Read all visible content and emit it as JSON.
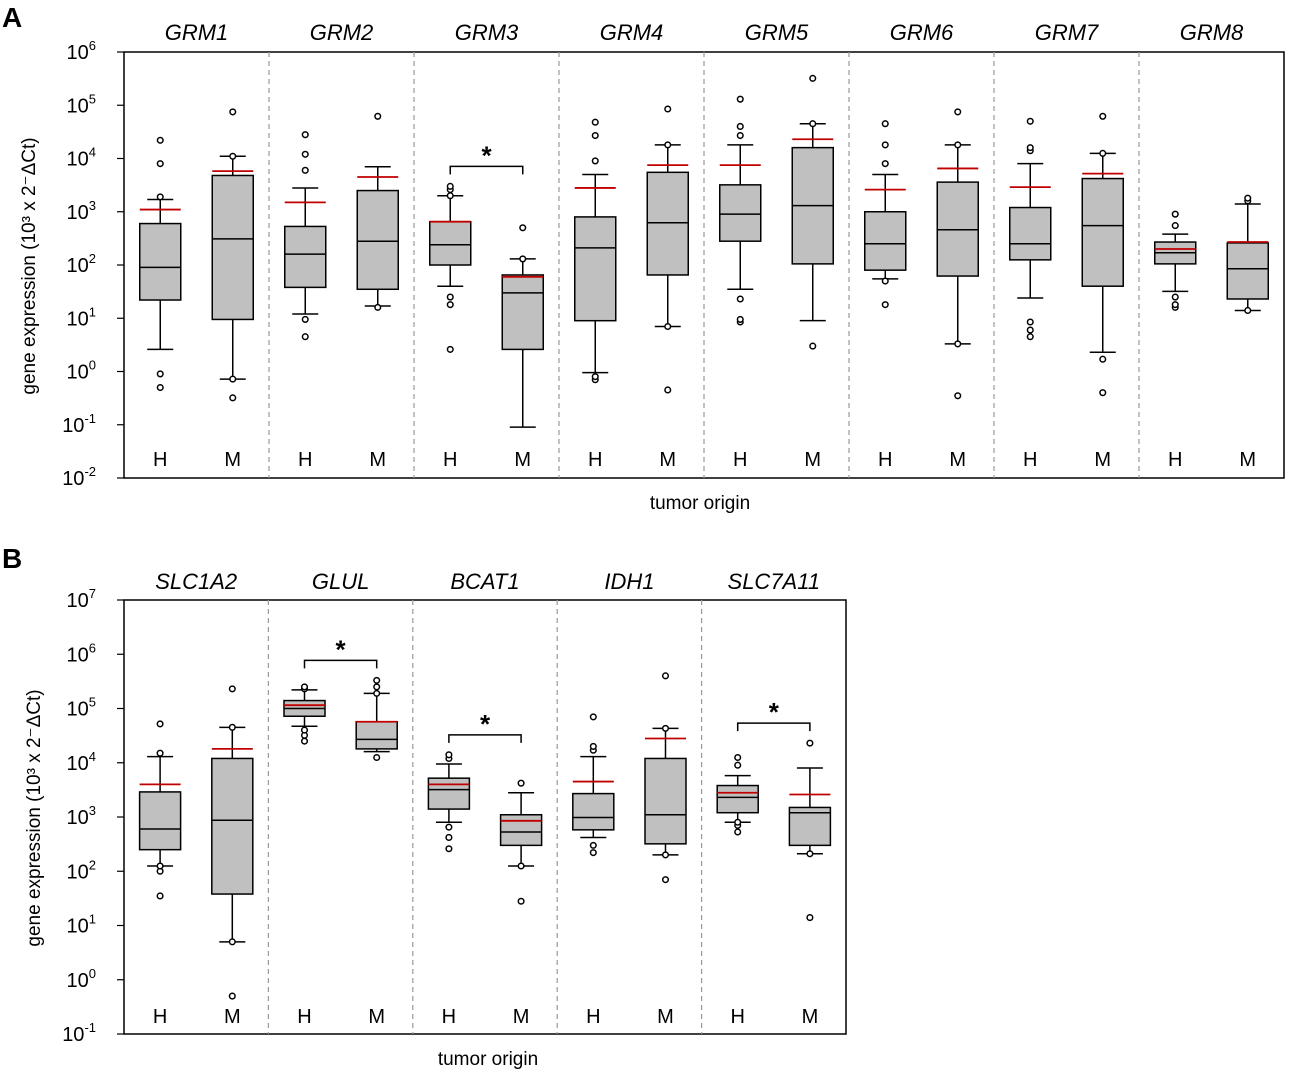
{
  "colors": {
    "box_fill": "#c0c0c0",
    "mean_line": "#c00000",
    "stroke": "#000000",
    "separator": "#999999"
  },
  "chart_data": [
    {
      "panel_label": "A",
      "type": "box",
      "xlabel": "tumor origin",
      "ylabel": "gene expression (10³ x 2⁻ΔCt)",
      "scale": "log10",
      "ylim_exp": [
        -2,
        6
      ],
      "ytick_exps": [
        "-2",
        "-1",
        "0",
        "1",
        "2",
        "3",
        "4",
        "5",
        "6"
      ],
      "group_labels": [
        "H",
        "M"
      ],
      "genes": [
        {
          "name": "GRM1",
          "boxes": [
            {
              "group": "H",
              "q1": 22,
              "median": 90,
              "q3": 600,
              "wlo": 2.6,
              "whi": 1700,
              "mean": 1100,
              "outliers": [
                0.5,
                0.9,
                1900,
                8000,
                22000
              ]
            },
            {
              "group": "M",
              "q1": 9.5,
              "median": 310,
              "q3": 4800,
              "wlo": 0.72,
              "whi": 11000,
              "mean": 5800,
              "outliers": [
                0.32,
                0.72,
                11000,
                75000
              ]
            }
          ]
        },
        {
          "name": "GRM2",
          "boxes": [
            {
              "group": "H",
              "q1": 38,
              "median": 160,
              "q3": 530,
              "wlo": 12,
              "whi": 2800,
              "mean": 1500,
              "outliers": [
                4.5,
                9.5,
                6000,
                12000,
                28000
              ]
            },
            {
              "group": "M",
              "q1": 35,
              "median": 280,
              "q3": 2500,
              "wlo": 17,
              "whi": 7000,
              "mean": 4500,
              "outliers": [
                16,
                62000
              ]
            }
          ]
        },
        {
          "name": "GRM3",
          "sig": "*",
          "boxes": [
            {
              "group": "H",
              "q1": 100,
              "median": 240,
              "q3": 650,
              "wlo": 40,
              "whi": 2000,
              "mean": 650,
              "outliers": [
                2.6,
                18,
                25,
                2000,
                2600,
                3000
              ]
            },
            {
              "group": "M",
              "q1": 2.6,
              "median": 30,
              "q3": 65,
              "wlo": 0.09,
              "whi": 130,
              "mean": 60,
              "outliers": [
                130,
                500
              ]
            }
          ]
        },
        {
          "name": "GRM4",
          "boxes": [
            {
              "group": "H",
              "q1": 9,
              "median": 210,
              "q3": 800,
              "wlo": 0.95,
              "whi": 5000,
              "mean": 2800,
              "outliers": [
                0.7,
                0.8,
                9000,
                27000,
                48000
              ]
            },
            {
              "group": "M",
              "q1": 65,
              "median": 620,
              "q3": 5500,
              "wlo": 7,
              "whi": 18000,
              "mean": 7500,
              "outliers": [
                0.45,
                7,
                18000,
                85000
              ]
            }
          ]
        },
        {
          "name": "GRM5",
          "boxes": [
            {
              "group": "H",
              "q1": 280,
              "median": 900,
              "q3": 3200,
              "wlo": 35,
              "whi": 18000,
              "mean": 7500,
              "outliers": [
                8.5,
                9.5,
                23,
                27000,
                40000,
                130000
              ]
            },
            {
              "group": "M",
              "q1": 105,
              "median": 1300,
              "q3": 16000,
              "wlo": 9,
              "whi": 45000,
              "mean": 23000,
              "outliers": [
                3,
                45000,
                320000
              ]
            }
          ]
        },
        {
          "name": "GRM6",
          "boxes": [
            {
              "group": "H",
              "q1": 80,
              "median": 250,
              "q3": 1000,
              "wlo": 55,
              "whi": 5000,
              "mean": 2600,
              "outliers": [
                18,
                50,
                8000,
                18000,
                45000
              ]
            },
            {
              "group": "M",
              "q1": 62,
              "median": 460,
              "q3": 3600,
              "wlo": 3.3,
              "whi": 18000,
              "mean": 6500,
              "outliers": [
                0.35,
                3.3,
                18000,
                75000
              ]
            }
          ]
        },
        {
          "name": "GRM7",
          "boxes": [
            {
              "group": "H",
              "q1": 125,
              "median": 250,
              "q3": 1200,
              "wlo": 24,
              "whi": 8000,
              "mean": 2900,
              "outliers": [
                4.5,
                6,
                8.5,
                14000,
                16000,
                50000
              ]
            },
            {
              "group": "M",
              "q1": 40,
              "median": 550,
              "q3": 4200,
              "wlo": 2.3,
              "whi": 12500,
              "mean": 5200,
              "outliers": [
                0.4,
                1.7,
                12500,
                62000
              ]
            }
          ]
        },
        {
          "name": "GRM8",
          "boxes": [
            {
              "group": "H",
              "q1": 105,
              "median": 170,
              "q3": 270,
              "wlo": 32,
              "whi": 380,
              "mean": 200,
              "outliers": [
                16,
                18,
                25,
                550,
                900
              ]
            },
            {
              "group": "M",
              "q1": 23,
              "median": 85,
              "q3": 260,
              "wlo": 14,
              "whi": 1400,
              "mean": 270,
              "outliers": [
                14,
                1600,
                1800
              ]
            }
          ]
        }
      ]
    },
    {
      "panel_label": "B",
      "type": "box",
      "xlabel": "tumor origin",
      "ylabel": "gene expression (10³ x 2⁻ΔCt)",
      "scale": "log10",
      "ylim_exp": [
        -1,
        7
      ],
      "ytick_exps": [
        "-1",
        "0",
        "1",
        "2",
        "3",
        "4",
        "5",
        "6",
        "7"
      ],
      "group_labels": [
        "H",
        "M"
      ],
      "genes": [
        {
          "name": "SLC1A2",
          "boxes": [
            {
              "group": "H",
              "q1": 250,
              "median": 600,
              "q3": 2900,
              "wlo": 125,
              "whi": 13000,
              "mean": 4000,
              "outliers": [
                35,
                100,
                125,
                15000,
                52000
              ]
            },
            {
              "group": "M",
              "q1": 38,
              "median": 870,
              "q3": 12000,
              "wlo": 5,
              "whi": 45000,
              "mean": 18000,
              "outliers": [
                0.5,
                5,
                45000,
                230000
              ]
            }
          ]
        },
        {
          "name": "GLUL",
          "sig": "*",
          "boxes": [
            {
              "group": "H",
              "q1": 72000,
              "median": 100000,
              "q3": 140000,
              "wlo": 47000,
              "whi": 220000,
              "mean": 115000,
              "outliers": [
                25000,
                32000,
                40000,
                230000,
                250000
              ]
            },
            {
              "group": "M",
              "q1": 18000,
              "median": 27000,
              "q3": 57000,
              "wlo": 16000,
              "whi": 190000,
              "mean": 57000,
              "outliers": [
                12500,
                190000,
                250000,
                330000
              ]
            }
          ]
        },
        {
          "name": "BCAT1",
          "sig": "*",
          "boxes": [
            {
              "group": "H",
              "q1": 1400,
              "median": 3200,
              "q3": 5200,
              "wlo": 800,
              "whi": 9500,
              "mean": 4000,
              "outliers": [
                260,
                420,
                650,
                12000,
                14000
              ]
            },
            {
              "group": "M",
              "q1": 300,
              "median": 530,
              "q3": 1100,
              "wlo": 125,
              "whi": 2800,
              "mean": 850,
              "outliers": [
                28,
                125,
                4200
              ]
            }
          ]
        },
        {
          "name": "IDH1",
          "boxes": [
            {
              "group": "H",
              "q1": 580,
              "median": 980,
              "q3": 2700,
              "wlo": 420,
              "whi": 13000,
              "mean": 4500,
              "outliers": [
                220,
                300,
                17000,
                20000,
                70000
              ]
            },
            {
              "group": "M",
              "q1": 320,
              "median": 1100,
              "q3": 12000,
              "wlo": 200,
              "whi": 43000,
              "mean": 28000,
              "outliers": [
                70,
                200,
                43000,
                400000
              ]
            }
          ]
        },
        {
          "name": "SLC7A11",
          "sig": "*",
          "boxes": [
            {
              "group": "H",
              "q1": 1200,
              "median": 2300,
              "q3": 3800,
              "wlo": 800,
              "whi": 5800,
              "mean": 2800,
              "outliers": [
                530,
                700,
                800,
                9000,
                12500
              ]
            },
            {
              "group": "M",
              "q1": 300,
              "median": 1200,
              "q3": 1500,
              "wlo": 210,
              "whi": 8000,
              "mean": 2600,
              "outliers": [
                14,
                210,
                23000
              ]
            }
          ]
        }
      ]
    }
  ]
}
